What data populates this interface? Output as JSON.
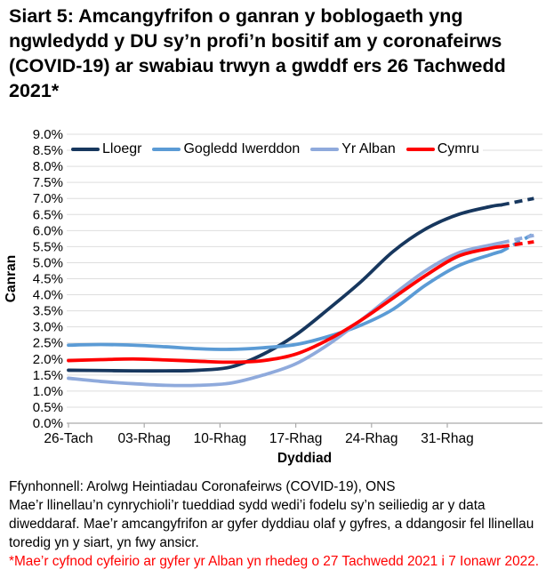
{
  "title": "Siart 5: Amcangyfrifon o ganran y boblogaeth yng ngwledydd y DU sy’n profi’n bositif am y coronafeirws (COVID-19) ar swabiau trwyn a gwddf ers 26 Tachwedd 2021*",
  "chart_data": {
    "type": "line",
    "xlabel": "Dyddiad",
    "ylabel": "Canran",
    "ylim": [
      0,
      9
    ],
    "ytick_step": 0.5,
    "y_ticks": [
      "0.0%",
      "0.5%",
      "1.0%",
      "1.5%",
      "2.0%",
      "2.5%",
      "3.0%",
      "3.5%",
      "4.0%",
      "4.5%",
      "5.0%",
      "5.5%",
      "6.0%",
      "6.5%",
      "7.0%",
      "7.5%",
      "8.0%",
      "8.5%",
      "9.0%"
    ],
    "x_ticks": [
      {
        "day": 0,
        "label": "26-Tach"
      },
      {
        "day": 7,
        "label": "03-Rhag"
      },
      {
        "day": 14,
        "label": "10-Rhag"
      },
      {
        "day": 21,
        "label": "17-Rhag"
      },
      {
        "day": 28,
        "label": "24-Rhag"
      },
      {
        "day": 35,
        "label": "31-Rhag"
      }
    ],
    "x_range_days": [
      0,
      43
    ],
    "grid": "horizontal",
    "legend_position": "top-left-inside",
    "days": [
      0,
      3,
      6,
      9,
      12,
      15,
      18,
      21,
      24,
      27,
      30,
      33,
      36,
      39,
      40,
      43
    ],
    "series": [
      {
        "name": "Lloegr",
        "color": "#17375E",
        "dash_from_day": 40,
        "values": [
          1.65,
          1.64,
          1.63,
          1.63,
          1.65,
          1.75,
          2.15,
          2.75,
          3.55,
          4.4,
          5.35,
          6.05,
          6.5,
          6.75,
          6.8,
          7.0
        ]
      },
      {
        "name": "Gogledd Iwerddon",
        "color": "#5B9BD5",
        "dash_from_day": 40,
        "values": [
          2.43,
          2.45,
          2.43,
          2.38,
          2.32,
          2.3,
          2.35,
          2.45,
          2.7,
          3.05,
          3.55,
          4.3,
          4.9,
          5.25,
          5.35,
          5.9
        ]
      },
      {
        "name": "Yr Alban",
        "color": "#8FAADC",
        "dash_from_day": 40,
        "values": [
          1.4,
          1.3,
          1.23,
          1.18,
          1.18,
          1.25,
          1.5,
          1.85,
          2.45,
          3.2,
          4.0,
          4.75,
          5.3,
          5.55,
          5.62,
          5.85
        ]
      },
      {
        "name": "Cymru",
        "color": "#FF0000",
        "dash_from_day": 40,
        "values": [
          1.95,
          1.98,
          2.0,
          1.97,
          1.93,
          1.9,
          1.95,
          2.15,
          2.6,
          3.2,
          3.9,
          4.6,
          5.2,
          5.45,
          5.5,
          5.65
        ]
      }
    ]
  },
  "footer": {
    "source": "Ffynhonnell: Arolwg Heintiadau Coronafeirws (COVID-19), ONS",
    "note": "Mae’r llinellau’n cynrychioli’r tueddiad sydd wedi’i fodelu sy’n seiliedig ar y data diweddaraf. Mae’r amcangyfrifon ar gyfer dyddiau olaf y gyfres, a ddangosir fel llinellau toredig yn y siart, yn fwy ansicr.",
    "footnote": "*Mae’r cyfnod cyfeirio ar gyfer yr Alban yn rhedeg o 27 Tachwedd 2021 i 7 Ionawr 2022."
  },
  "colors": {
    "grid": "#DEDEDE",
    "axis": "#ABABAB",
    "text": "#000000",
    "footnote_red": "#FF0000"
  }
}
